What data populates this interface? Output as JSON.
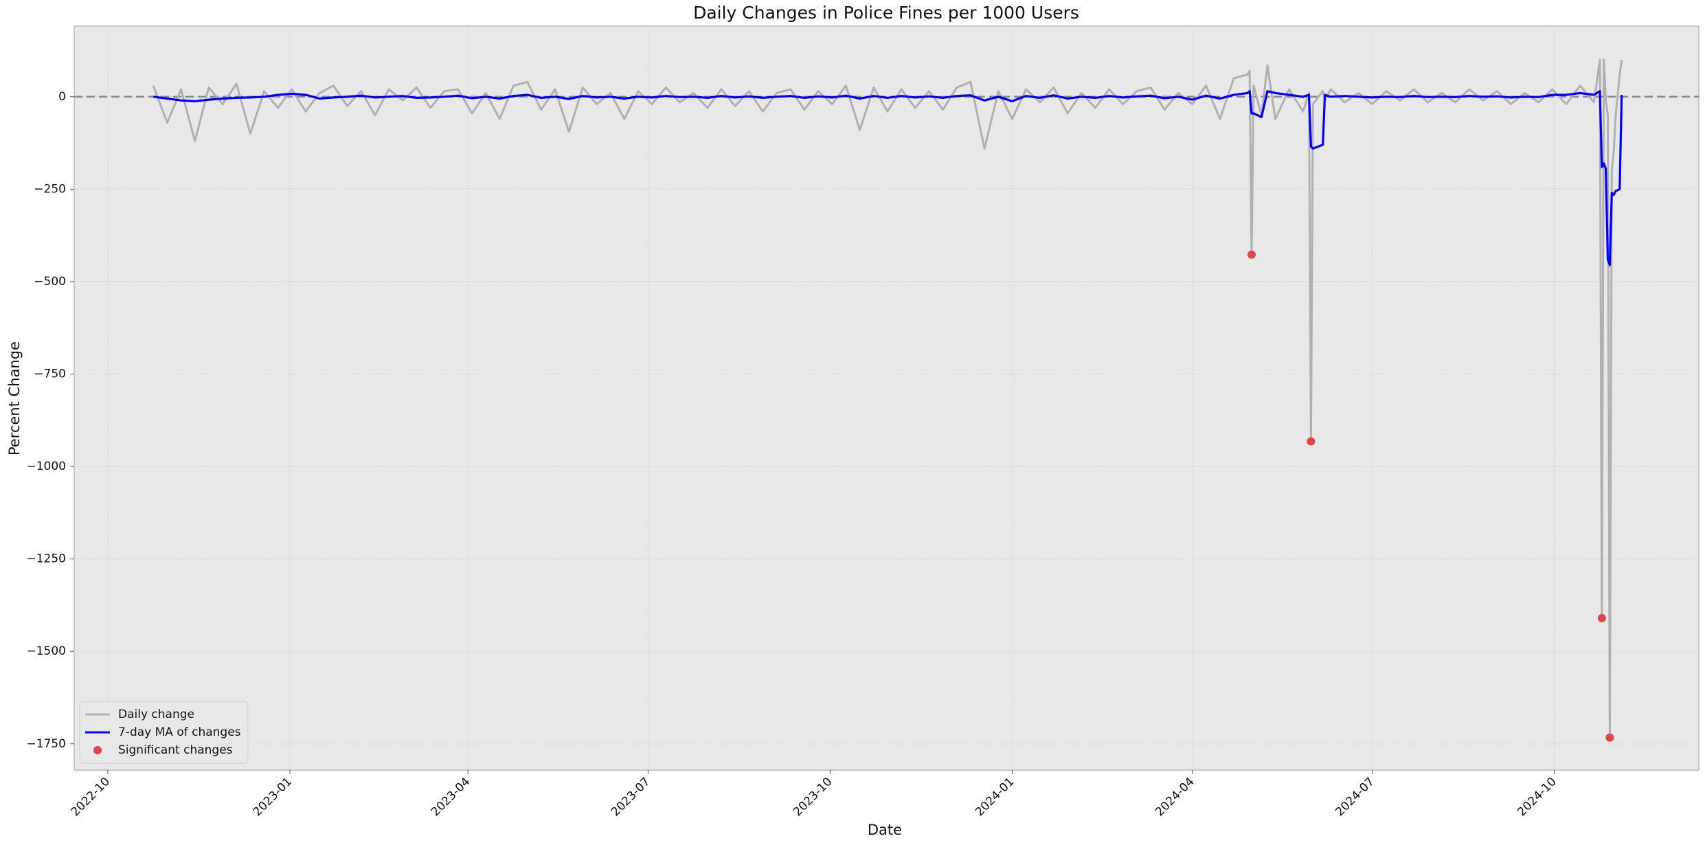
{
  "chart_data": {
    "type": "line",
    "title": "Daily Changes in Police Fines per 1000 Users",
    "xlabel": "Date",
    "ylabel": "Percent Change",
    "x": [
      "2022-10-24",
      "2022-10-31",
      "2022-11-07",
      "2022-11-14",
      "2022-11-21",
      "2022-11-28",
      "2022-12-05",
      "2022-12-12",
      "2022-12-19",
      "2022-12-26",
      "2023-01-02",
      "2023-01-09",
      "2023-01-16",
      "2023-01-23",
      "2023-01-30",
      "2023-02-06",
      "2023-02-13",
      "2023-02-20",
      "2023-02-27",
      "2023-03-06",
      "2023-03-13",
      "2023-03-20",
      "2023-03-27",
      "2023-04-03",
      "2023-04-10",
      "2023-04-17",
      "2023-04-24",
      "2023-05-01",
      "2023-05-08",
      "2023-05-15",
      "2023-05-22",
      "2023-05-29",
      "2023-06-05",
      "2023-06-12",
      "2023-06-19",
      "2023-06-26",
      "2023-07-03",
      "2023-07-10",
      "2023-07-17",
      "2023-07-24",
      "2023-07-31",
      "2023-08-07",
      "2023-08-14",
      "2023-08-21",
      "2023-08-28",
      "2023-09-04",
      "2023-09-11",
      "2023-09-18",
      "2023-09-25",
      "2023-10-02",
      "2023-10-09",
      "2023-10-16",
      "2023-10-23",
      "2023-10-30",
      "2023-11-06",
      "2023-11-13",
      "2023-11-20",
      "2023-11-27",
      "2023-12-04",
      "2023-12-11",
      "2023-12-18",
      "2023-12-25",
      "2024-01-01",
      "2024-01-08",
      "2024-01-15",
      "2024-01-22",
      "2024-01-29",
      "2024-02-05",
      "2024-02-12",
      "2024-02-19",
      "2024-02-26",
      "2024-03-04",
      "2024-03-11",
      "2024-03-18",
      "2024-03-25",
      "2024-04-01",
      "2024-04-08",
      "2024-04-15",
      "2024-04-22",
      "2024-04-29",
      "2024-04-30",
      "2024-05-01",
      "2024-05-02",
      "2024-05-06",
      "2024-05-09",
      "2024-05-13",
      "2024-05-20",
      "2024-05-27",
      "2024-05-30",
      "2024-05-31",
      "2024-06-01",
      "2024-06-06",
      "2024-06-07",
      "2024-06-10",
      "2024-06-17",
      "2024-06-24",
      "2024-07-01",
      "2024-07-08",
      "2024-07-15",
      "2024-07-22",
      "2024-07-29",
      "2024-08-05",
      "2024-08-12",
      "2024-08-19",
      "2024-08-26",
      "2024-09-02",
      "2024-09-09",
      "2024-09-16",
      "2024-09-23",
      "2024-09-30",
      "2024-10-07",
      "2024-10-14",
      "2024-10-21",
      "2024-10-24",
      "2024-10-25",
      "2024-10-26",
      "2024-10-27",
      "2024-10-28",
      "2024-10-29",
      "2024-10-30",
      "2024-10-31",
      "2024-11-01",
      "2024-11-03",
      "2024-11-04"
    ],
    "series": [
      {
        "name": "Daily change",
        "color": "#b0b0b0",
        "values": [
          30,
          -70,
          20,
          -120,
          25,
          -20,
          35,
          -100,
          15,
          -30,
          20,
          -40,
          10,
          30,
          -25,
          15,
          -50,
          20,
          -10,
          25,
          -30,
          15,
          20,
          -45,
          10,
          -60,
          30,
          40,
          -35,
          20,
          -95,
          25,
          -20,
          10,
          -60,
          15,
          -20,
          25,
          -15,
          10,
          -30,
          20,
          -25,
          15,
          -40,
          10,
          20,
          -35,
          15,
          -20,
          30,
          -90,
          25,
          -40,
          20,
          -30,
          15,
          -35,
          25,
          40,
          -140,
          15,
          -60,
          20,
          -15,
          25,
          -45,
          10,
          -30,
          20,
          -20,
          15,
          25,
          -35,
          10,
          -20,
          30,
          -60,
          50,
          60,
          70,
          -427,
          30,
          -50,
          85,
          -60,
          20,
          -40,
          10,
          -932,
          -20,
          15,
          -10,
          20,
          -15,
          10,
          -20,
          15,
          -10,
          20,
          -15,
          10,
          -15,
          20,
          -10,
          15,
          -20,
          10,
          -15,
          20,
          -20,
          30,
          -15,
          100,
          -1410,
          100,
          -10,
          -50,
          -1733,
          -200,
          -150,
          -50,
          60,
          100
        ]
      },
      {
        "name": "7-day MA of changes",
        "color": "#0000ff",
        "values": [
          0,
          -5,
          -10,
          -12,
          -8,
          -5,
          -3,
          -2,
          0,
          5,
          8,
          5,
          -5,
          -2,
          0,
          3,
          -2,
          0,
          2,
          -3,
          -2,
          0,
          3,
          -4,
          0,
          -5,
          2,
          5,
          -3,
          0,
          -6,
          2,
          -2,
          0,
          -5,
          0,
          -2,
          2,
          -1,
          0,
          -3,
          2,
          -2,
          1,
          -3,
          0,
          2,
          -3,
          1,
          -2,
          3,
          -5,
          2,
          -3,
          2,
          -2,
          1,
          -3,
          2,
          4,
          -10,
          0,
          -12,
          2,
          -3,
          4,
          -5,
          0,
          -3,
          2,
          -2,
          1,
          3,
          -4,
          0,
          -8,
          3,
          -5,
          5,
          10,
          15,
          -45,
          -45,
          -55,
          15,
          10,
          5,
          0,
          5,
          -135,
          -140,
          -130,
          5,
          0,
          2,
          0,
          -2,
          0,
          -1,
          2,
          -1,
          0,
          -1,
          2,
          0,
          1,
          -2,
          0,
          -1,
          5,
          5,
          10,
          5,
          15,
          -190,
          -180,
          -195,
          -440,
          -455,
          -260,
          -265,
          -255,
          -250,
          5
        ]
      },
      {
        "name": "Significant changes",
        "color": "#e0454a",
        "marker": "point",
        "x": [
          "2024-05-01",
          "2024-05-31",
          "2024-10-25",
          "2024-10-29"
        ],
        "values": [
          -427,
          -932,
          -1410,
          -1733
        ]
      }
    ],
    "hline": 0,
    "xlim": [
      "2022-09-14",
      "2024-12-13"
    ],
    "xticks": [
      "2022-10",
      "2023-01",
      "2023-04",
      "2023-07",
      "2023-10",
      "2024-01",
      "2024-04",
      "2024-07",
      "2024-10"
    ],
    "ylim": [
      -1821,
      191
    ],
    "yticks": [
      0,
      {
        "value": -250,
        "label": "−250"
      },
      {
        "value": -500,
        "label": "−500"
      },
      {
        "value": -750,
        "label": "−750"
      },
      {
        "value": -1000,
        "label": "−1000"
      },
      {
        "value": -1250,
        "label": "−1250"
      },
      {
        "value": -1500,
        "label": "−1500"
      },
      {
        "value": -1750,
        "label": "−1750"
      }
    ],
    "grid": true,
    "legend": "lower left"
  }
}
